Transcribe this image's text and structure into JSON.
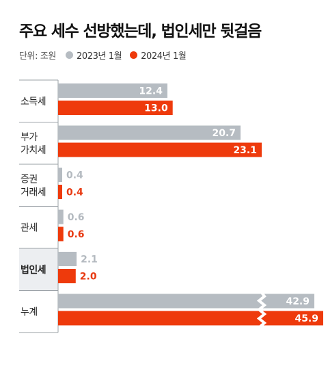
{
  "title": "주요 세수 선방했는데, 법인세만 뒷걸음",
  "legend": {
    "unit": "단위: 조원",
    "series_2023": "2023년 1월",
    "series_2024": "2024년 1월"
  },
  "colors": {
    "series_2023": "#b6bcc2",
    "series_2024": "#ee3a0c",
    "highlight_bg": "#eceef1"
  },
  "chart_data": {
    "type": "bar",
    "orientation": "horizontal",
    "title": "주요 세수 선방했는데, 법인세만 뒷걸음",
    "unit": "단위: 조원",
    "categories": [
      [
        "소득세"
      ],
      [
        "부가",
        "가치세"
      ],
      [
        "증권",
        "거래세"
      ],
      [
        "관세"
      ],
      [
        "법인세"
      ],
      [
        "누계"
      ]
    ],
    "highlighted_category": "법인세",
    "broken_axis_category": "누계",
    "series": [
      {
        "name": "2023년 1월",
        "values": [
          12.4,
          20.7,
          0.4,
          0.6,
          2.1,
          42.9
        ],
        "labels": [
          "12.4",
          "20.7",
          "0.4",
          "0.6",
          "2.1",
          "42.9"
        ]
      },
      {
        "name": "2024년 1월",
        "values": [
          13.0,
          23.1,
          0.4,
          0.6,
          2.0,
          45.9
        ],
        "labels": [
          "13.0",
          "23.1",
          "0.4",
          "0.6",
          "2.0",
          "45.9"
        ]
      }
    ],
    "legend_position": "top-left",
    "grid": false
  }
}
